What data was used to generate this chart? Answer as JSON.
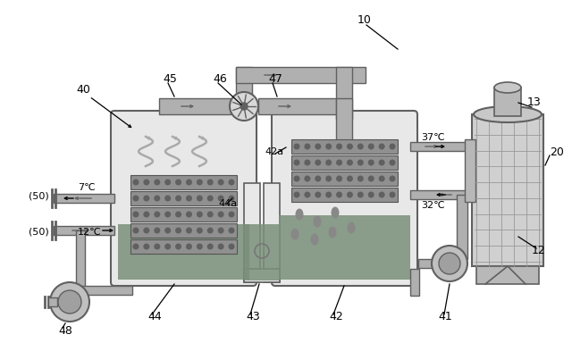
{
  "bg_color": "#ffffff",
  "dark_gray": "#606060",
  "med_gray": "#999999",
  "light_gray": "#e8e8e8",
  "tank_fill": "#d0d0d0",
  "water_fill": "#7a8f7a",
  "pipe_fill": "#b0b0b0",
  "coil_fill": "#888888"
}
